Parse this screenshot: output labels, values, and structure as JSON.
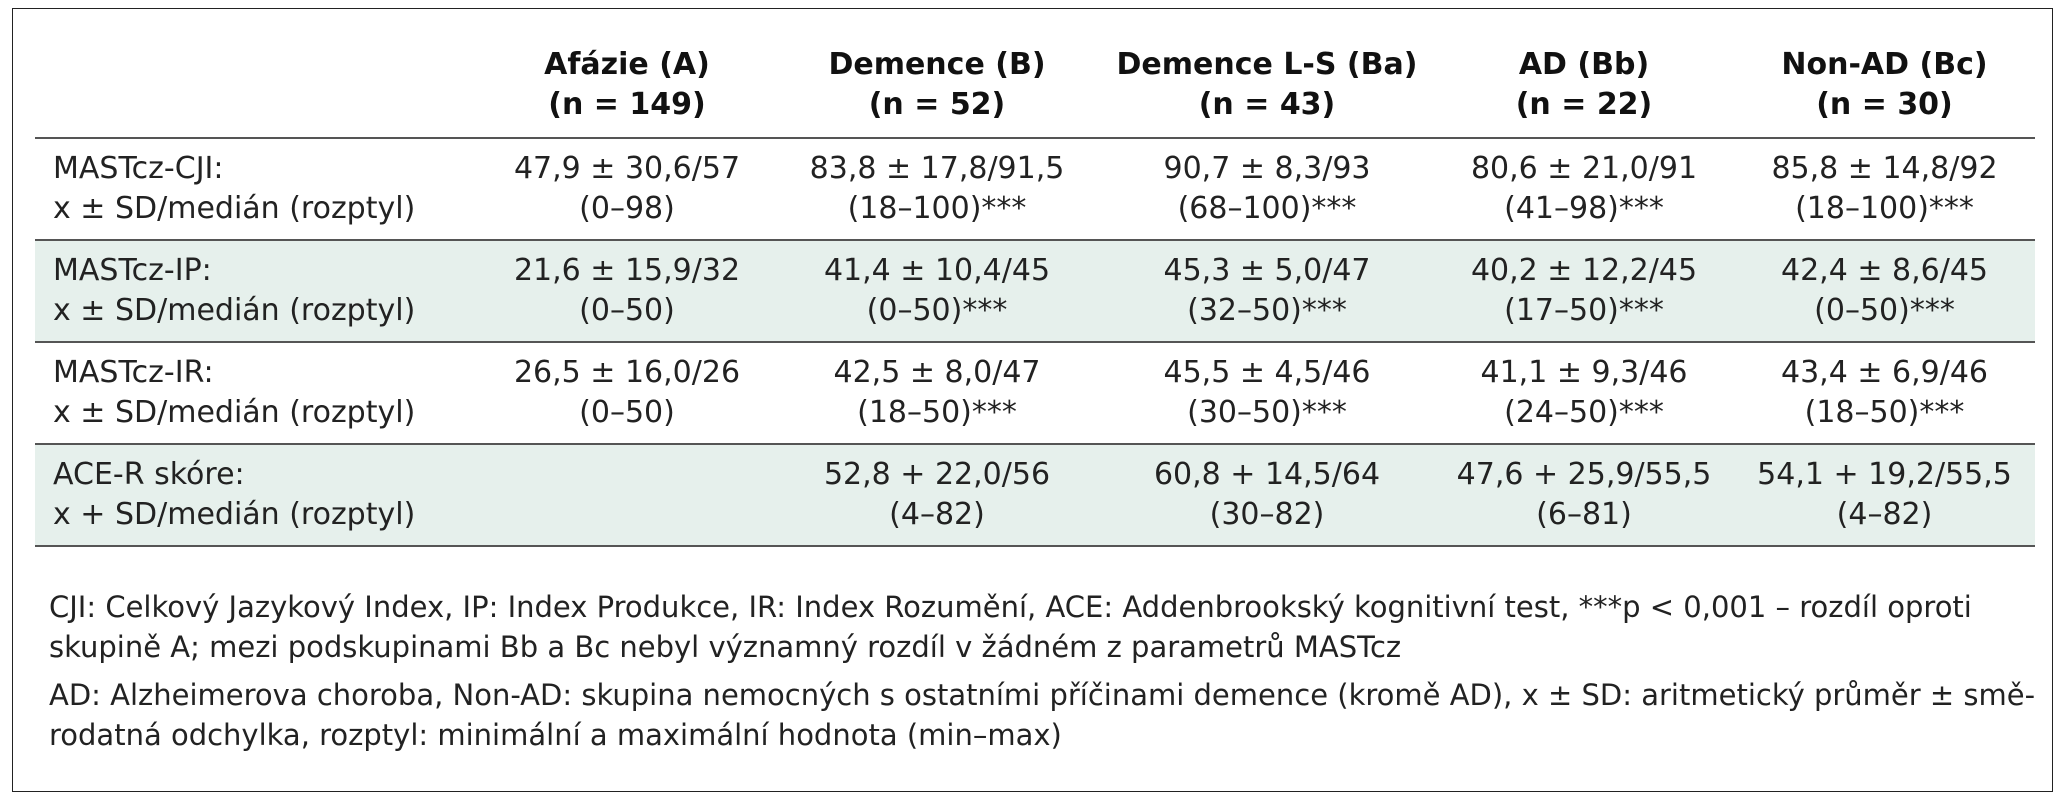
{
  "headers": [
    {
      "line1": "",
      "line2": ""
    },
    {
      "line1": "Afázie (A)",
      "line2": "(n = 149)"
    },
    {
      "line1": "Demence (B)",
      "line2": "(n = 52)"
    },
    {
      "line1": "Demence L-S (Ba)",
      "line2": "(n = 43)"
    },
    {
      "line1": "AD (Bb)",
      "line2": "(n = 22)"
    },
    {
      "line1": "Non-AD (Bc)",
      "line2": "(n = 30)"
    }
  ],
  "rows": [
    {
      "label1": "MASTcz-CJI:",
      "label2": "x ± SD/medián (rozptyl)",
      "cells": [
        {
          "l1": "47,9 ± 30,6/57",
          "l2": "(0–98)"
        },
        {
          "l1": "83,8 ± 17,8/91,5",
          "l2": "(18–100)***"
        },
        {
          "l1": "90,7 ± 8,3/93",
          "l2": "(68–100)***"
        },
        {
          "l1": "80,6 ± 21,0/91",
          "l2": "(41–98)***"
        },
        {
          "l1": "85,8 ± 14,8/92",
          "l2": "(18–100)***"
        }
      ]
    },
    {
      "label1": "MASTcz-IP:",
      "label2": "x ± SD/medián (rozptyl)",
      "cells": [
        {
          "l1": "21,6 ± 15,9/32",
          "l2": "(0–50)"
        },
        {
          "l1": "41,4 ± 10,4/45",
          "l2": "(0–50)***"
        },
        {
          "l1": "45,3 ± 5,0/47",
          "l2": "(32–50)***"
        },
        {
          "l1": "40,2 ± 12,2/45",
          "l2": "(17–50)***"
        },
        {
          "l1": "42,4 ± 8,6/45",
          "l2": "(0–50)***"
        }
      ]
    },
    {
      "label1": "MASTcz-IR:",
      "label2": "x ± SD/medián (rozptyl)",
      "cells": [
        {
          "l1": "26,5 ± 16,0/26",
          "l2": "(0–50)"
        },
        {
          "l1": "42,5 ± 8,0/47",
          "l2": "(18–50)***"
        },
        {
          "l1": "45,5 ± 4,5/46",
          "l2": "(30–50)***"
        },
        {
          "l1": "41,1 ± 9,3/46",
          "l2": "(24–50)***"
        },
        {
          "l1": "43,4 ± 6,9/46",
          "l2": "(18–50)***"
        }
      ]
    },
    {
      "label1": "ACE-R skóre:",
      "label2": "x + SD/medián (rozptyl)",
      "cells": [
        {
          "l1": "",
          "l2": ""
        },
        {
          "l1": "52,8 + 22,0/56",
          "l2": "(4–82)"
        },
        {
          "l1": "60,8 + 14,5/64",
          "l2": "(30–82)"
        },
        {
          "l1": "47,6 + 25,9/55,5",
          "l2": "(6–81)"
        },
        {
          "l1": "54,1 + 19,2/55,5",
          "l2": "(4–82)"
        }
      ]
    }
  ],
  "notes": [
    {
      "l1": "CJI: Celkový Jazykový Index, IP: Index Produkce, IR: Index Rozumění, ACE: Addenbrookský kognitivní test, ***p < 0,001 – rozdíl oproti",
      "l2": "skupině A; mezi podskupinami Bb a Bc nebyl významný rozdíl v žádném z parametrů MASTcz"
    },
    {
      "l1": "AD: Alzheimerova choroba, Non-AD: skupina nemocných s ostatními příčinami demence (kromě AD), x ± SD: aritmetický průměr ± smě-",
      "l2": "rodatná odchylka, rozptyl: minimální a maximální hodnota (min–max)"
    }
  ],
  "colors": {
    "shaded_row": "#e6f0ec",
    "rule": "#555555",
    "border": "#222222"
  }
}
